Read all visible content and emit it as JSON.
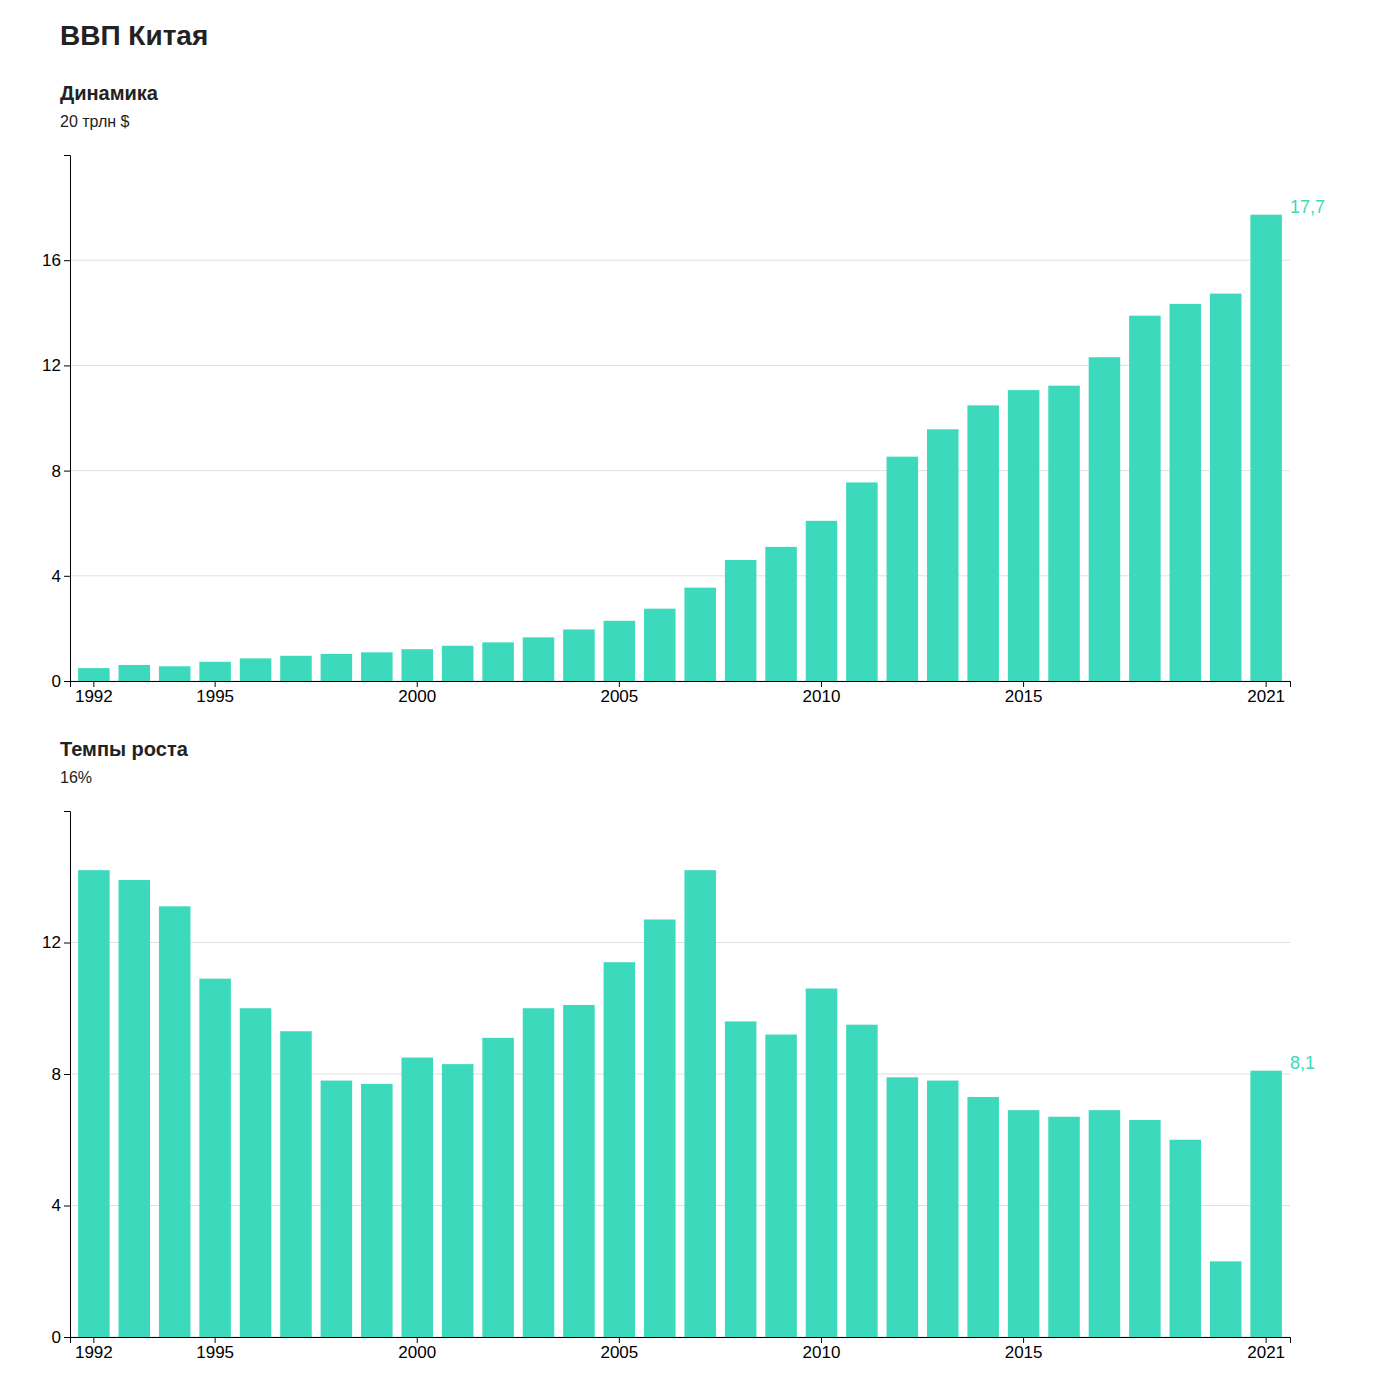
{
  "chart_data": [
    {
      "type": "bar",
      "title": "ВВП Китая",
      "subtitle": "Динамика",
      "y_label": "20 трлн $",
      "categories": [
        "1992",
        null,
        null,
        "1995",
        null,
        null,
        null,
        null,
        "2000",
        null,
        null,
        null,
        null,
        "2005",
        null,
        null,
        null,
        null,
        "2010",
        null,
        null,
        null,
        null,
        "2015",
        null,
        null,
        null,
        null,
        null,
        "2021"
      ],
      "values": [
        0.49,
        0.61,
        0.56,
        0.73,
        0.86,
        0.96,
        1.03,
        1.09,
        1.21,
        1.34,
        1.47,
        1.66,
        1.96,
        2.29,
        2.75,
        3.55,
        4.6,
        5.1,
        6.09,
        7.55,
        8.53,
        9.57,
        10.48,
        11.06,
        11.23,
        12.31,
        13.89,
        14.34,
        14.73,
        17.73
      ],
      "color": "#3dd9bc",
      "ylim": [
        0,
        20
      ],
      "yticks": [
        0,
        4,
        8,
        12,
        16
      ],
      "grid": true,
      "annotations": [
        {
          "text": "17,7",
          "value": 17.73
        }
      ]
    },
    {
      "type": "bar",
      "subtitle": "Темпы роста",
      "y_label": "16%",
      "categories": [
        "1992",
        null,
        null,
        "1995",
        null,
        null,
        null,
        null,
        "2000",
        null,
        null,
        null,
        null,
        "2005",
        null,
        null,
        null,
        null,
        "2010",
        null,
        null,
        null,
        null,
        "2015",
        null,
        null,
        null,
        null,
        null,
        "2021"
      ],
      "values": [
        14.2,
        13.9,
        13.1,
        10.9,
        10.0,
        9.3,
        7.8,
        7.7,
        8.5,
        8.3,
        9.1,
        10.0,
        10.1,
        11.4,
        12.7,
        14.2,
        9.6,
        9.2,
        10.6,
        9.5,
        7.9,
        7.8,
        7.3,
        6.9,
        6.7,
        6.9,
        6.6,
        6.0,
        2.3,
        8.1
      ],
      "color": "#3dd9bc",
      "ylim": [
        0,
        16
      ],
      "yticks": [
        0,
        4,
        8,
        12
      ],
      "grid": true,
      "annotations": [
        {
          "text": "8,1",
          "value": 8.1
        }
      ]
    }
  ]
}
